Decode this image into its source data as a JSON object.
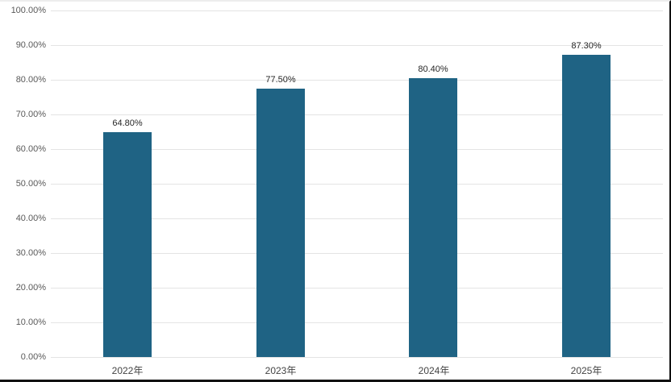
{
  "chart_data": {
    "type": "bar",
    "title": "",
    "xlabel": "",
    "ylabel": "",
    "categories": [
      "2022年",
      "2023年",
      "2024年",
      "2025年"
    ],
    "values": [
      64.8,
      77.5,
      80.4,
      87.3
    ],
    "value_labels": [
      "64.80%",
      "77.50%",
      "80.40%",
      "87.30%"
    ],
    "series": [
      {
        "name": "",
        "values": [
          64.8,
          77.5,
          80.4,
          87.3
        ]
      }
    ],
    "ylim": [
      0,
      100
    ],
    "y_tick_values": [
      0,
      10,
      20,
      30,
      40,
      50,
      60,
      70,
      80,
      90,
      100
    ],
    "y_tick_labels": [
      "0.00%",
      "10.00%",
      "20.00%",
      "30.00%",
      "40.00%",
      "50.00%",
      "60.00%",
      "70.00%",
      "80.00%",
      "90.00%",
      "100.00%"
    ],
    "grid": true,
    "legend": false,
    "colors": {
      "bar": "#1f6384",
      "gridline": "#e4e4e4",
      "y_tick_text": "#595959",
      "value_label_text": "#262626",
      "x_label_text": "#444444",
      "frame_border_dark": "#111111",
      "frame_border_light": "#ededed"
    }
  }
}
